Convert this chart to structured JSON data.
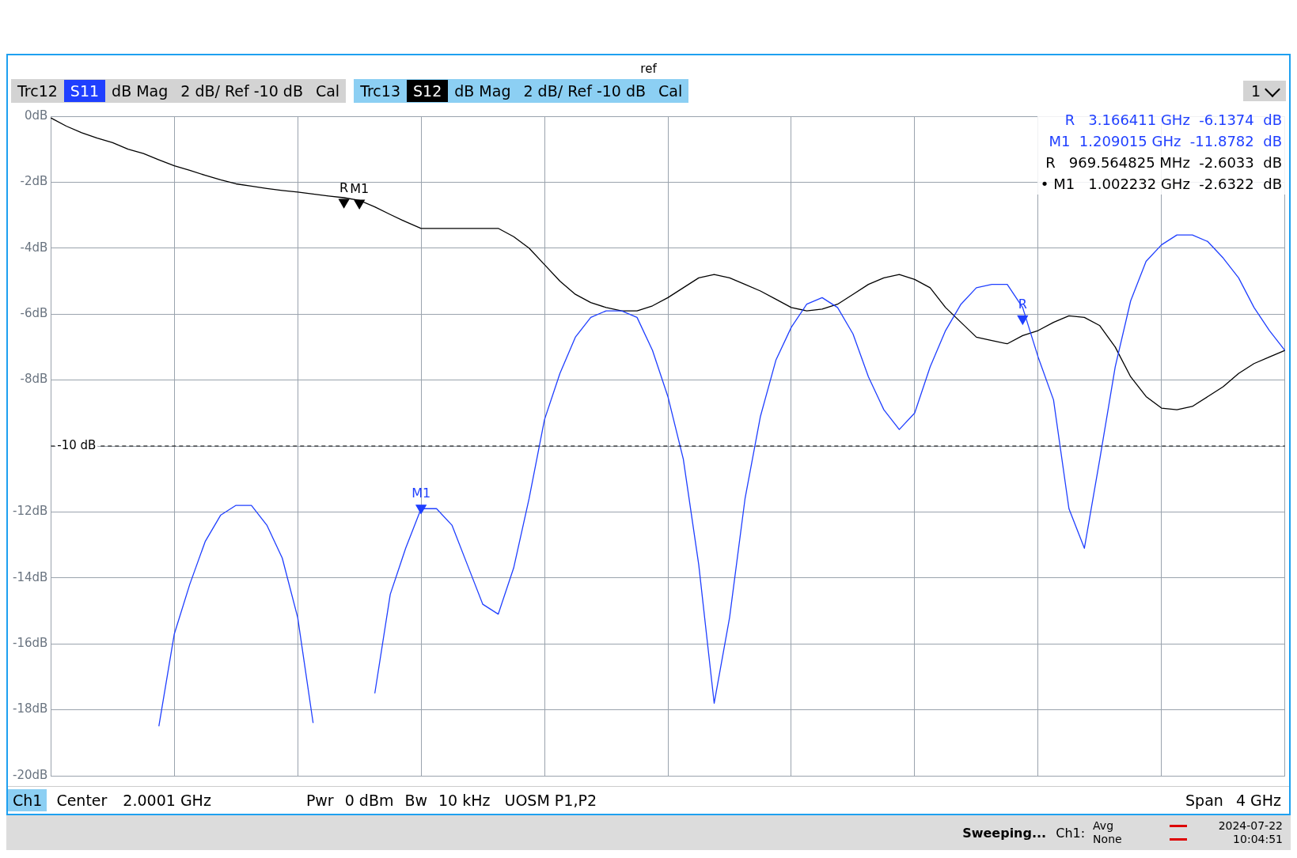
{
  "chart_data": {
    "type": "line",
    "title": "ref",
    "categories": [
      null,
      null,
      null,
      null,
      null,
      null,
      null,
      null,
      null,
      null,
      null,
      null,
      null,
      null,
      null,
      null,
      null,
      null,
      null,
      null,
      null,
      null,
      null,
      null,
      null,
      null,
      null,
      null,
      null,
      null,
      null,
      null,
      null,
      null,
      null,
      null,
      null,
      null,
      null,
      null,
      null,
      null,
      null,
      null,
      null,
      null,
      null,
      null,
      null,
      null,
      null,
      null,
      null,
      null,
      null,
      null,
      null,
      null,
      null,
      null,
      null,
      null,
      null,
      null,
      null,
      null,
      null,
      null,
      null,
      null,
      null,
      null,
      null,
      null,
      null,
      null,
      null,
      null,
      null,
      null,
      null
    ],
    "ylim": [
      -20,
      0
    ],
    "yticks": [
      {
        "value": 0,
        "label": "0dB"
      },
      {
        "value": -2,
        "label": "-2dB"
      },
      {
        "value": -4,
        "label": "-4dB"
      },
      {
        "value": -6,
        "label": "-6dB"
      },
      {
        "value": -8,
        "label": "-8dB"
      },
      {
        "value": -10,
        "label": null
      },
      {
        "value": -12,
        "label": "-12dB"
      },
      {
        "value": -14,
        "label": "-14dB"
      },
      {
        "value": -16,
        "label": "-16dB"
      },
      {
        "value": -18,
        "label": "-18dB"
      },
      {
        "value": -20,
        "label": "-20dB"
      }
    ],
    "tick_labels": "y",
    "grid": true,
    "legend": "top left",
    "series": [
      {
        "name": "S11",
        "color": "#1f3fff",
        "values": [
          null,
          null,
          null,
          null,
          null,
          null,
          null,
          -18.5,
          -15.7,
          -14.2,
          -12.9,
          -12.1,
          -11.8,
          -11.8,
          -12.4,
          -13.4,
          -15.2,
          -18.4,
          null,
          null,
          null,
          -17.5,
          -14.5,
          -13.1,
          -11.9,
          -11.9,
          -12.4,
          -13.6,
          -14.8,
          -15.1,
          -13.7,
          -11.6,
          -9.2,
          -7.8,
          -6.7,
          -6.1,
          -5.9,
          -5.9,
          -6.1,
          -7.1,
          -8.5,
          -10.4,
          -13.6,
          -17.8,
          -15.2,
          -11.6,
          -9.1,
          -7.4,
          -6.4,
          -5.7,
          -5.5,
          -5.8,
          -6.6,
          -7.9,
          -8.9,
          -9.5,
          -9.0,
          -7.6,
          -6.5,
          -5.7,
          -5.2,
          -5.1,
          -5.1,
          -5.8,
          -7.3,
          -8.6,
          -11.9,
          -13.1,
          -10.4,
          -7.6,
          -5.6,
          -4.4,
          -3.9,
          -3.6,
          -3.6,
          -3.8,
          -4.3,
          -4.9,
          -5.8,
          -6.5,
          -7.1
        ]
      },
      {
        "name": "S12",
        "color": "#000000",
        "values": [
          -0.05,
          -0.3,
          -0.5,
          -0.66,
          -0.8,
          -1.0,
          -1.13,
          -1.32,
          -1.5,
          -1.64,
          -1.79,
          -1.93,
          -2.05,
          -2.12,
          -2.19,
          -2.25,
          -2.3,
          -2.36,
          -2.42,
          -2.47,
          -2.55,
          -2.75,
          -2.98,
          -3.2,
          -3.4,
          -3.4,
          -3.4,
          -3.4,
          -3.4,
          -3.4,
          -3.65,
          -4.0,
          -4.5,
          -5.0,
          -5.4,
          -5.65,
          -5.8,
          -5.9,
          -5.9,
          -5.75,
          -5.5,
          -5.2,
          -4.9,
          -4.8,
          -4.9,
          -5.1,
          -5.3,
          -5.55,
          -5.8,
          -5.9,
          -5.85,
          -5.7,
          -5.4,
          -5.1,
          -4.9,
          -4.8,
          -4.95,
          -5.2,
          -5.8,
          -6.25,
          -6.7,
          -6.8,
          -6.9,
          -6.65,
          -6.5,
          -6.25,
          -6.05,
          -6.1,
          -6.35,
          -7.0,
          -7.9,
          -8.5,
          -8.85,
          -8.9,
          -8.8,
          -8.5,
          -8.2,
          -7.8,
          -7.5,
          -7.3,
          -7.1
        ]
      },
      {
        "type": "scatter",
        "color": "#1f3fff",
        "values": [
          null,
          null,
          null,
          null,
          null,
          null,
          null,
          null,
          null,
          null,
          null,
          null,
          null,
          null,
          null,
          null,
          null,
          null,
          null,
          null,
          null,
          null,
          null,
          null,
          -11.8782,
          null,
          null,
          null,
          null,
          null,
          null,
          null,
          null,
          null,
          null,
          null,
          null,
          null,
          null,
          null,
          null,
          null,
          null,
          null,
          null,
          null,
          null,
          null,
          null,
          null,
          null,
          null,
          null,
          null,
          null,
          null,
          null,
          null,
          null,
          null,
          null,
          null,
          null,
          -6.1374,
          null,
          null,
          null,
          null,
          null,
          null,
          null,
          null,
          null,
          null,
          null,
          null,
          null,
          null,
          null,
          null,
          null
        ],
        "value_labels": [
          null,
          null,
          null,
          null,
          null,
          null,
          null,
          null,
          null,
          null,
          null,
          null,
          null,
          null,
          null,
          null,
          null,
          null,
          null,
          null,
          null,
          null,
          null,
          null,
          "M1",
          null,
          null,
          null,
          null,
          null,
          null,
          null,
          null,
          null,
          null,
          null,
          null,
          null,
          null,
          null,
          null,
          null,
          null,
          null,
          null,
          null,
          null,
          null,
          null,
          null,
          null,
          null,
          null,
          null,
          null,
          null,
          null,
          null,
          null,
          null,
          null,
          null,
          null,
          "R",
          null,
          null,
          null,
          null,
          null,
          null,
          null,
          null,
          null,
          null,
          null,
          null,
          null,
          null,
          null,
          null,
          null
        ]
      },
      {
        "type": "scatter",
        "color": "#000000",
        "values": [
          null,
          null,
          null,
          null,
          null,
          null,
          null,
          null,
          null,
          null,
          null,
          null,
          null,
          null,
          null,
          null,
          null,
          null,
          null,
          -2.6033,
          -2.6322,
          null,
          null,
          null,
          null,
          null,
          null,
          null,
          null,
          null,
          null,
          null,
          null,
          null,
          null,
          null,
          null,
          null,
          null,
          null,
          null,
          null,
          null,
          null,
          null,
          null,
          null,
          null,
          null,
          null,
          null,
          null,
          null,
          null,
          null,
          null,
          null,
          null,
          null,
          null,
          null,
          null,
          null,
          null,
          null,
          null,
          null,
          null,
          null,
          null,
          null,
          null,
          null,
          null,
          null,
          null,
          null,
          null,
          null,
          null,
          null
        ],
        "value_labels": [
          null,
          null,
          null,
          null,
          null,
          null,
          null,
          null,
          null,
          null,
          null,
          null,
          null,
          null,
          null,
          null,
          null,
          null,
          null,
          "R",
          "M1",
          null,
          null,
          null,
          null,
          null,
          null,
          null,
          null,
          null,
          null,
          null,
          null,
          null,
          null,
          null,
          null,
          null,
          null,
          null,
          null,
          null,
          null,
          null,
          null,
          null,
          null,
          null,
          null,
          null,
          null,
          null,
          null,
          null,
          null,
          null,
          null,
          null,
          null,
          null,
          null,
          null,
          null,
          null,
          null,
          null,
          null,
          null,
          null,
          null,
          null,
          null,
          null,
          null,
          null,
          null,
          null,
          null,
          null,
          null,
          null
        ]
      }
    ],
    "ref_lines": [
      {
        "axis": "y",
        "value": -10,
        "label": "-10 dB",
        "color": "#000000",
        "line_style": "dashed"
      }
    ],
    "annotations": [
      "Trc12",
      "dB Mag",
      "2 dB/ Ref -10 dB",
      "Cal",
      "Trc13",
      "dB Mag",
      "2 dB/ Ref -10 dB",
      "Cal",
      "1",
      "R   3.166411 GHz  -6.1374  dB",
      "M1  1.209015 GHz  -11.8782  dB",
      "R   969.564825 MHz  -2.6033  dB",
      "• M1   1.002232 GHz  -2.6322  dB",
      "Ch1",
      "Center",
      "2.0001 GHz",
      "Pwr",
      "0 dBm",
      "Bw",
      "10 kHz",
      "UOSM P1,P2",
      "Span",
      "4 GHz",
      "Sweeping...",
      "Ch1:",
      "Avg",
      "None",
      "2024-07-22",
      "10:04:51"
    ]
  }
}
